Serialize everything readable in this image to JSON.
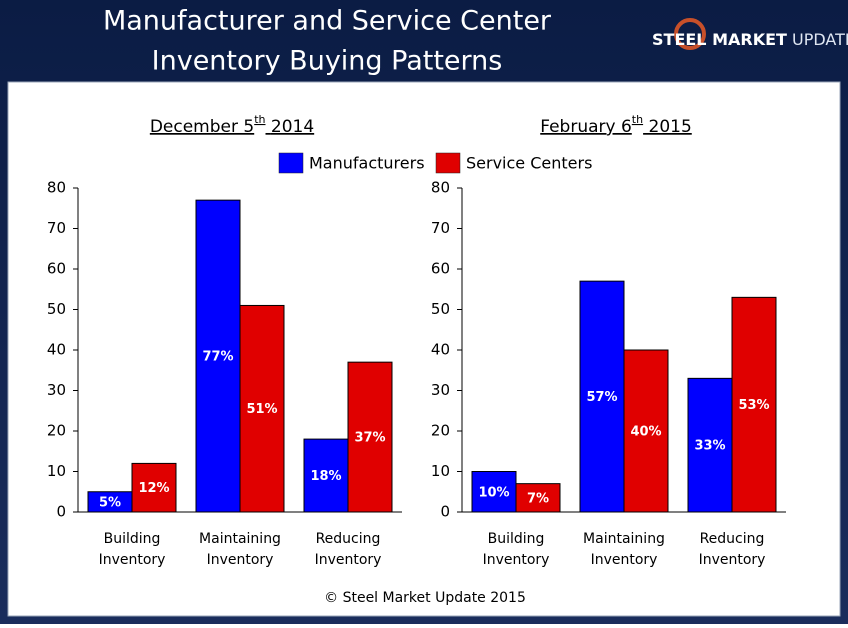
{
  "header": {
    "title": [
      "Manufacturer and Service Center",
      "Inventory Buying Patterns"
    ]
  },
  "logo": {
    "bold": "STEEL MARKET",
    "light": "UPDATE"
  },
  "legend": [
    {
      "name": "Manufacturers",
      "color": "#0000ff"
    },
    {
      "name": "Service Centers",
      "color": "#e00000"
    }
  ],
  "chart_data": [
    {
      "type": "bar",
      "title": [
        "December 5",
        "th",
        "2014"
      ],
      "categories": [
        [
          "Building",
          "Inventory"
        ],
        [
          "Maintaining",
          "Inventory"
        ],
        [
          "Reducing",
          "Inventory"
        ]
      ],
      "series": [
        {
          "values": [
            5,
            77,
            18
          ],
          "value_labels": [
            "5%",
            "77%",
            "18%"
          ]
        },
        {
          "values": [
            12,
            51,
            37
          ],
          "value_labels": [
            "12%",
            "51%",
            "37%"
          ]
        }
      ],
      "ylim": [
        0,
        80
      ],
      "yticks": [
        0,
        10,
        20,
        30,
        40,
        50,
        60,
        70,
        80
      ]
    },
    {
      "type": "bar",
      "title": [
        "February 6",
        "th",
        "2015"
      ],
      "categories": [
        [
          "Building",
          "Inventory"
        ],
        [
          "Maintaining",
          "Inventory"
        ],
        [
          "Reducing",
          "Inventory"
        ]
      ],
      "series": [
        {
          "values": [
            10,
            57,
            33
          ],
          "value_labels": [
            "10%",
            "57%",
            "33%"
          ]
        },
        {
          "values": [
            7,
            40,
            53
          ],
          "value_labels": [
            "7%",
            "40%",
            "53%"
          ]
        }
      ],
      "ylim": [
        0,
        80
      ],
      "yticks": [
        0,
        10,
        20,
        30,
        40,
        50,
        60,
        70,
        80
      ]
    }
  ],
  "footer": "© Steel Market Update 2015"
}
